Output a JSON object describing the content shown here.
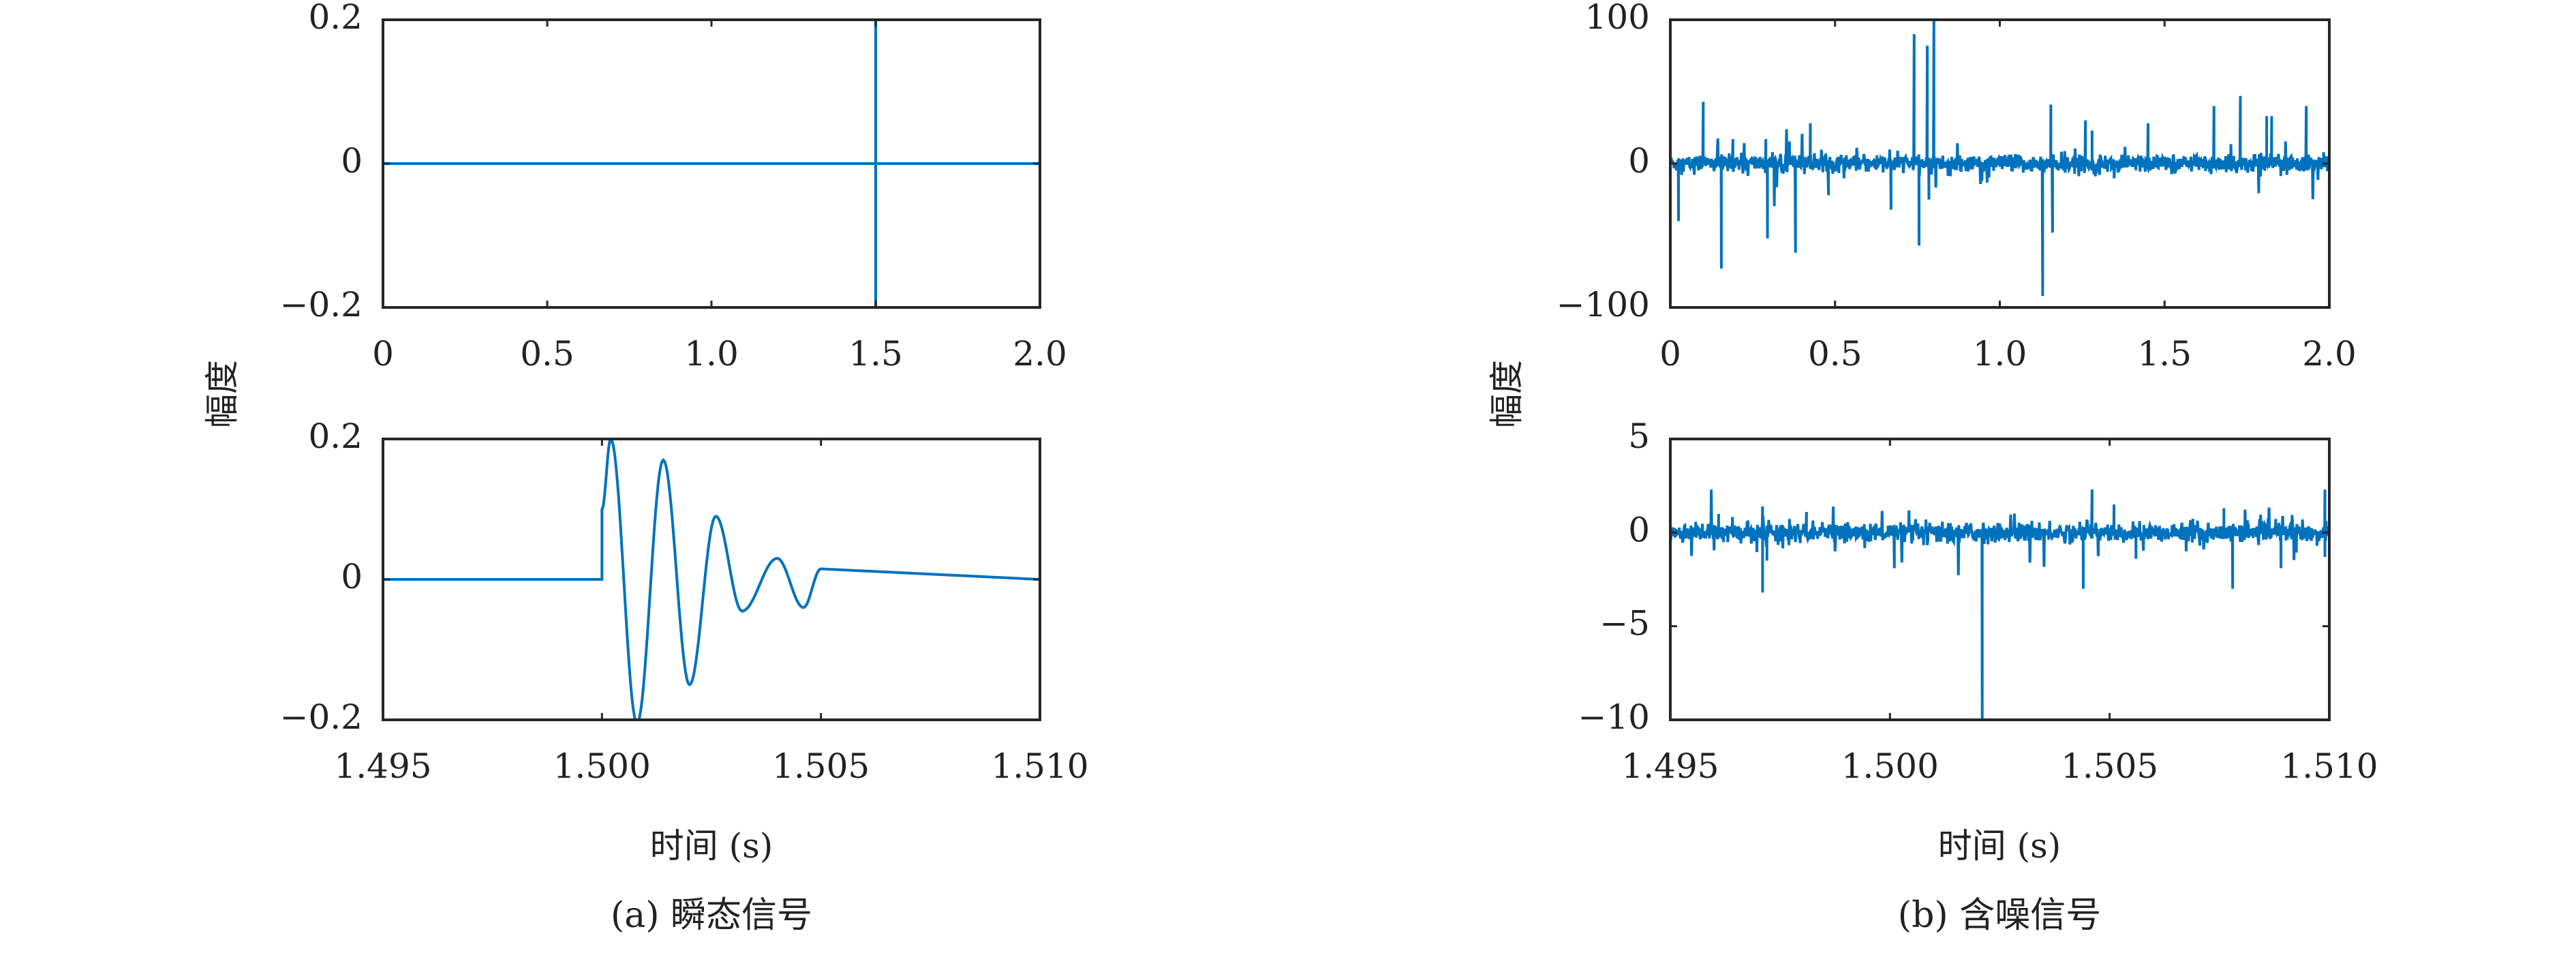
{
  "ylabel": "幅度",
  "xlabel": "时间 (s)",
  "captions": [
    "(a) 瞬态信号",
    "(b) 含噪信号"
  ],
  "line_color": "#0072BD",
  "chart_data": [
    {
      "id": "a-top",
      "type": "line",
      "title": "",
      "xlabel": "",
      "ylabel": "幅度",
      "xlim": [
        0,
        2.0
      ],
      "ylim": [
        -0.2,
        0.2
      ],
      "xticks": [
        0,
        0.5,
        1.0,
        1.5,
        2.0
      ],
      "xtick_labels": [
        "0",
        "0.5",
        "1.0",
        "1.5",
        "2.0"
      ],
      "yticks": [
        -0.2,
        0,
        0.2
      ],
      "ytick_labels": [
        "−0.2",
        "0",
        "0.2"
      ],
      "signal": "transient burst at t=1.5 s, otherwise 0"
    },
    {
      "id": "a-bottom",
      "type": "line",
      "xlabel": "时间 (s)",
      "xlim": [
        1.495,
        1.51
      ],
      "ylim": [
        -0.2,
        0.2
      ],
      "xticks": [
        1.495,
        1.5,
        1.505,
        1.51
      ],
      "xtick_labels": [
        "1.495",
        "1.500",
        "1.505",
        "1.510"
      ],
      "yticks": [
        -0.2,
        0,
        0.2
      ],
      "ytick_labels": [
        "−0.2",
        "0",
        "0.2"
      ],
      "extrema": [
        [
          1.5,
          0.0
        ],
        [
          1.5,
          0.1
        ],
        [
          1.5002,
          0.2
        ],
        [
          1.5008,
          -0.205
        ],
        [
          1.5014,
          0.17
        ],
        [
          1.502,
          -0.15
        ],
        [
          1.5026,
          0.09
        ],
        [
          1.5032,
          -0.045
        ],
        [
          1.504,
          0.03
        ],
        [
          1.5046,
          -0.04
        ],
        [
          1.505,
          0.015
        ],
        [
          1.505,
          0.0
        ]
      ]
    },
    {
      "id": "b-top",
      "type": "line",
      "ylabel": "幅度",
      "xlim": [
        0,
        2.0
      ],
      "ylim": [
        -100,
        100
      ],
      "xticks": [
        0,
        0.5,
        1.0,
        1.5,
        2.0
      ],
      "xtick_labels": [
        "0",
        "0.5",
        "1.0",
        "1.5",
        "2.0"
      ],
      "yticks": [
        -100,
        0,
        100
      ],
      "ytick_labels": [
        "−100",
        "0",
        "100"
      ],
      "noise_std": 3,
      "spikes": [
        [
          0.025,
          -40
        ],
        [
          0.1,
          43
        ],
        [
          0.155,
          -73
        ],
        [
          0.19,
          17
        ],
        [
          0.29,
          17
        ],
        [
          0.295,
          -52
        ],
        [
          0.38,
          -62
        ],
        [
          0.425,
          28
        ],
        [
          0.48,
          -22
        ],
        [
          0.67,
          -32
        ],
        [
          0.74,
          90
        ],
        [
          0.755,
          -57
        ],
        [
          0.78,
          82
        ],
        [
          0.785,
          -25
        ],
        [
          0.8,
          100
        ],
        [
          1.13,
          -92
        ],
        [
          1.155,
          41
        ],
        [
          1.16,
          -48
        ],
        [
          1.26,
          30
        ],
        [
          1.28,
          23
        ],
        [
          1.45,
          28
        ],
        [
          1.65,
          40
        ],
        [
          1.73,
          47
        ],
        [
          1.81,
          33
        ],
        [
          1.825,
          33
        ],
        [
          1.93,
          40
        ]
      ]
    },
    {
      "id": "b-bottom",
      "type": "line",
      "xlabel": "时间 (s)",
      "xlim": [
        1.495,
        1.51
      ],
      "ylim": [
        -10,
        5
      ],
      "xticks": [
        1.495,
        1.5,
        1.505,
        1.51
      ],
      "xtick_labels": [
        "1.495",
        "1.500",
        "1.505",
        "1.510"
      ],
      "yticks": [
        -10,
        -5,
        0,
        5
      ],
      "ytick_labels": [
        "−10",
        "−5",
        "0",
        "5"
      ],
      "noise_std": 0.25,
      "spikes": [
        [
          1.4961,
          1.0
        ],
        [
          1.4971,
          1.4
        ],
        [
          1.4971,
          -3.2
        ],
        [
          1.4972,
          -1.5
        ],
        [
          1.4981,
          1.1
        ],
        [
          1.5001,
          -1.9
        ],
        [
          1.5021,
          -10
        ],
        [
          1.5046,
          2.3
        ],
        [
          1.5044,
          -3.0
        ],
        [
          1.5051,
          1.5
        ],
        [
          1.5056,
          -1.4
        ],
        [
          1.5076,
          1.3
        ],
        [
          1.5078,
          -3.0
        ],
        [
          1.5089,
          -1.9
        ],
        [
          1.5099,
          2.3
        ],
        [
          1.5099,
          -1.3
        ]
      ]
    }
  ]
}
